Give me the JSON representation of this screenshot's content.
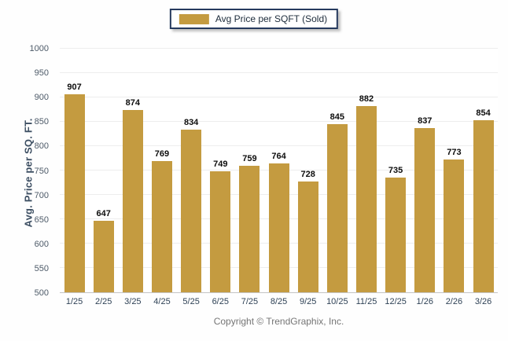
{
  "legend": {
    "label": "Avg Price per SQFT (Sold)",
    "swatch_icon": "legend-swatch",
    "swatch_color": "#c49b40"
  },
  "y_axis": {
    "title": "Avg. Price per SQ. FT.",
    "min": 500,
    "max": 1000,
    "step": 50
  },
  "footer": {
    "copyright": "Copyright © TrendGraphix, Inc."
  },
  "colors": {
    "bar": "#c49b40",
    "gridline": "#ededed",
    "axis_baseline": "#c5c5c5",
    "legend_border": "#263a5e",
    "value_label": "#0d0d0d",
    "y_tick_label": "#4d5a68",
    "x_tick_label": "#2f4256",
    "y_title": "#3d4f63",
    "footer_text": "#757575"
  },
  "chart_data": {
    "type": "bar",
    "title": "",
    "xlabel": "",
    "ylabel": "Avg. Price per SQ. FT.",
    "categories": [
      "1/25",
      "2/25",
      "3/25",
      "4/25",
      "5/25",
      "6/25",
      "7/25",
      "8/25",
      "9/25",
      "10/25",
      "11/25",
      "12/25",
      "1/26",
      "2/26",
      "3/26"
    ],
    "values": [
      907,
      647,
      874,
      769,
      834,
      749,
      759,
      764,
      728,
      845,
      882,
      735,
      837,
      773,
      854
    ],
    "series_name": "Avg Price per SQFT (Sold)",
    "ylim": [
      500,
      1000
    ],
    "ytick_step": 50,
    "grid": true,
    "legend_position": "top-center",
    "bar_color": "#c49b40",
    "value_labels_shown": true
  }
}
